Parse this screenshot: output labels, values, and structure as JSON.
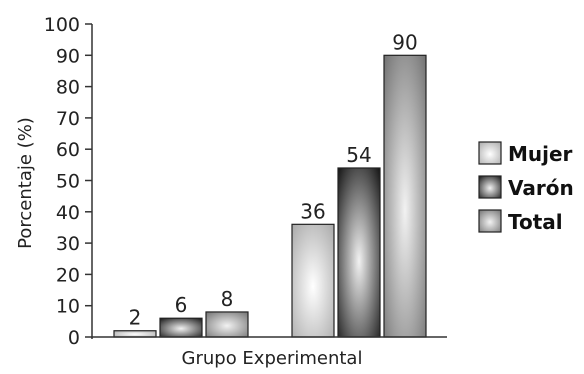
{
  "chart_data": {
    "type": "bar",
    "title": "",
    "ylabel": "Porcentaje (%)",
    "xlabel": "Grupo Experimental",
    "ylim": [
      0,
      100
    ],
    "yticks": [
      0,
      10,
      20,
      30,
      40,
      50,
      60,
      70,
      80,
      90,
      100
    ],
    "groups": 2,
    "series": [
      {
        "name": "Mujer",
        "values": [
          2,
          36
        ],
        "colors": [
          "#ffffff",
          "#a8a8a8"
        ]
      },
      {
        "name": "Varón",
        "values": [
          6,
          54
        ],
        "colors": [
          "#f2f2f2",
          "#111111"
        ]
      },
      {
        "name": "Total",
        "values": [
          8,
          90
        ],
        "colors": [
          "#f2f2f2",
          "#707070"
        ]
      }
    ],
    "legend_position": "right"
  }
}
